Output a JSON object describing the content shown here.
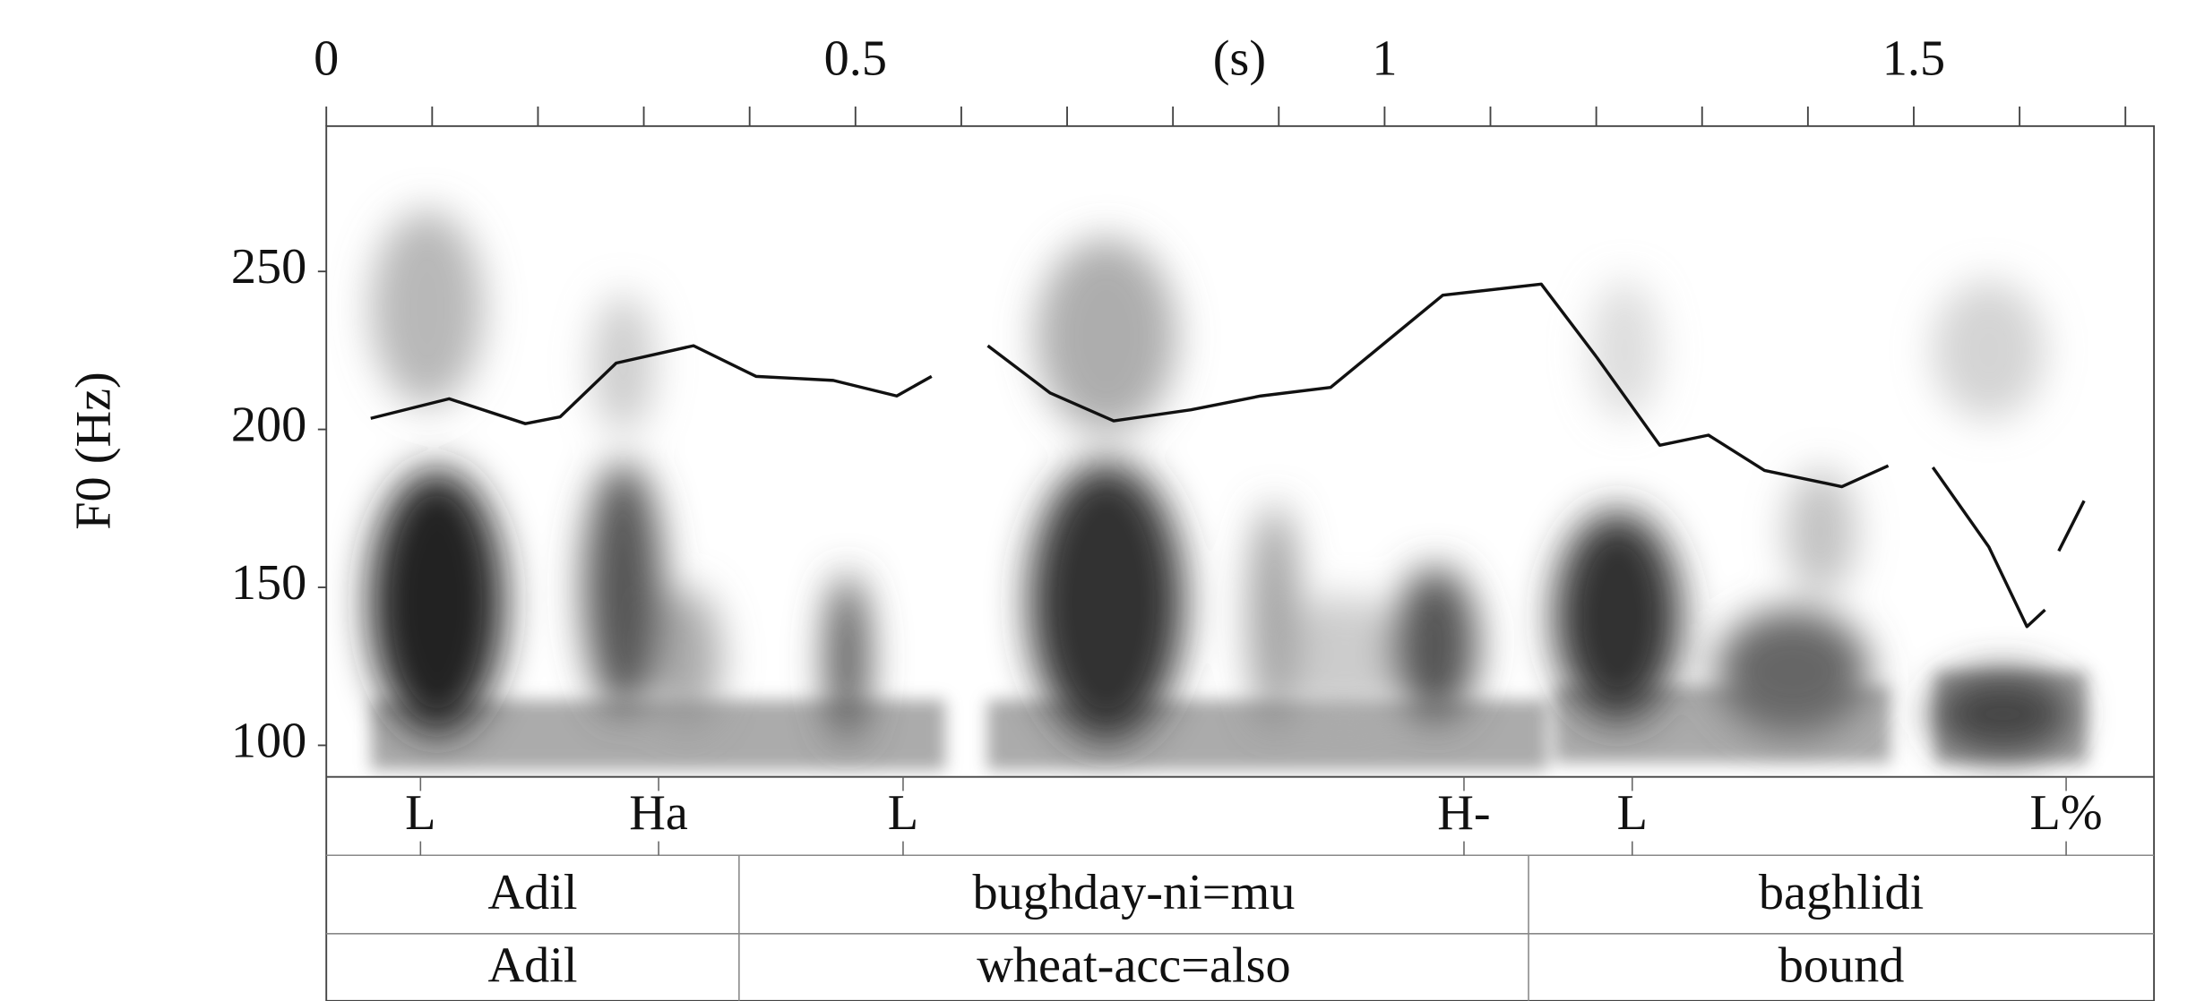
{
  "chart_data": {
    "type": "line",
    "x_label": "(s)",
    "y_label": "F0 (Hz)",
    "xlim": [
      0,
      1.727
    ],
    "ylim": [
      90,
      296
    ],
    "xticks": [
      0,
      0.5,
      1,
      1.5
    ],
    "xminorticks": [
      0.1,
      0.2,
      0.3,
      0.4,
      0.6,
      0.7,
      0.8,
      0.9,
      1.1,
      1.2,
      1.3,
      1.4,
      1.6,
      1.7
    ],
    "yticks": [
      100,
      150,
      200,
      250
    ],
    "color": "#111111",
    "x": [
      0.042,
      0.116,
      0.188,
      0.221,
      0.274,
      0.347,
      0.406,
      0.479,
      0.539,
      0.572,
      null,
      0.625,
      0.684,
      0.744,
      0.817,
      0.883,
      0.949,
      1.002,
      1.055,
      1.148,
      1.201,
      1.26,
      1.306,
      1.359,
      1.432,
      1.476,
      null,
      1.518,
      1.571,
      1.607,
      1.624,
      null,
      1.637,
      1.661
    ],
    "values": [
      203.5,
      209.7,
      201.8,
      204,
      221,
      226.5,
      216.8,
      215.5,
      210.6,
      216.8,
      null,
      226.5,
      211.5,
      202.7,
      206.2,
      210.6,
      213.3,
      227.9,
      242.5,
      246,
      222.6,
      195,
      198.2,
      187,
      181.9,
      188.5,
      null,
      188,
      162.8,
      137.6,
      142.9,
      null,
      161.5,
      177.4
    ],
    "tone_tier": {
      "labels": [
        "L",
        "Ha",
        "L",
        "H-",
        "L",
        "L%"
      ],
      "times": [
        0.089,
        0.314,
        0.545,
        1.075,
        1.234,
        1.644
      ]
    },
    "word_tier": {
      "labels": [
        "Adil",
        "bughday-ni=mu",
        "baghlidi"
      ],
      "boundaries": [
        0.39,
        1.136
      ]
    },
    "gloss_tier": {
      "labels": [
        "Adil",
        "wheat-acc=also",
        "bound"
      ],
      "boundaries": [
        0.39,
        1.136
      ]
    }
  }
}
